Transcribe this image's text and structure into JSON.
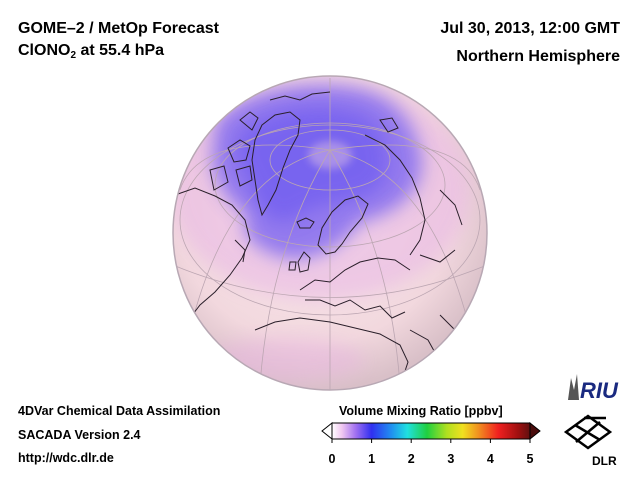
{
  "header": {
    "title_line1": "GOME–2 / MetOp Forecast",
    "species_main": "ClONO",
    "species_sub": "2",
    "species_rest": " at 55.4 hPa",
    "datetime": "Jul 30, 2013, 12:00 GMT",
    "region": "Northern Hemisphere"
  },
  "footer": {
    "line1": "4DVar Chemical Data Assimilation",
    "line2": "SACADA Version 2.4",
    "url": "http://wdc.dlr.de"
  },
  "colorbar": {
    "title": "Volume Mixing Ratio [ppbv]",
    "ticks": [
      "0",
      "1",
      "2",
      "3",
      "4",
      "5"
    ],
    "min": 0,
    "max": 5
  },
  "logos": {
    "riu": "RIU",
    "dlr": "DLR"
  },
  "colors": {
    "globe_base": "#f4dde2",
    "enhanced_purple": "#8066ee",
    "globe_edge": "#b8a8b4"
  }
}
